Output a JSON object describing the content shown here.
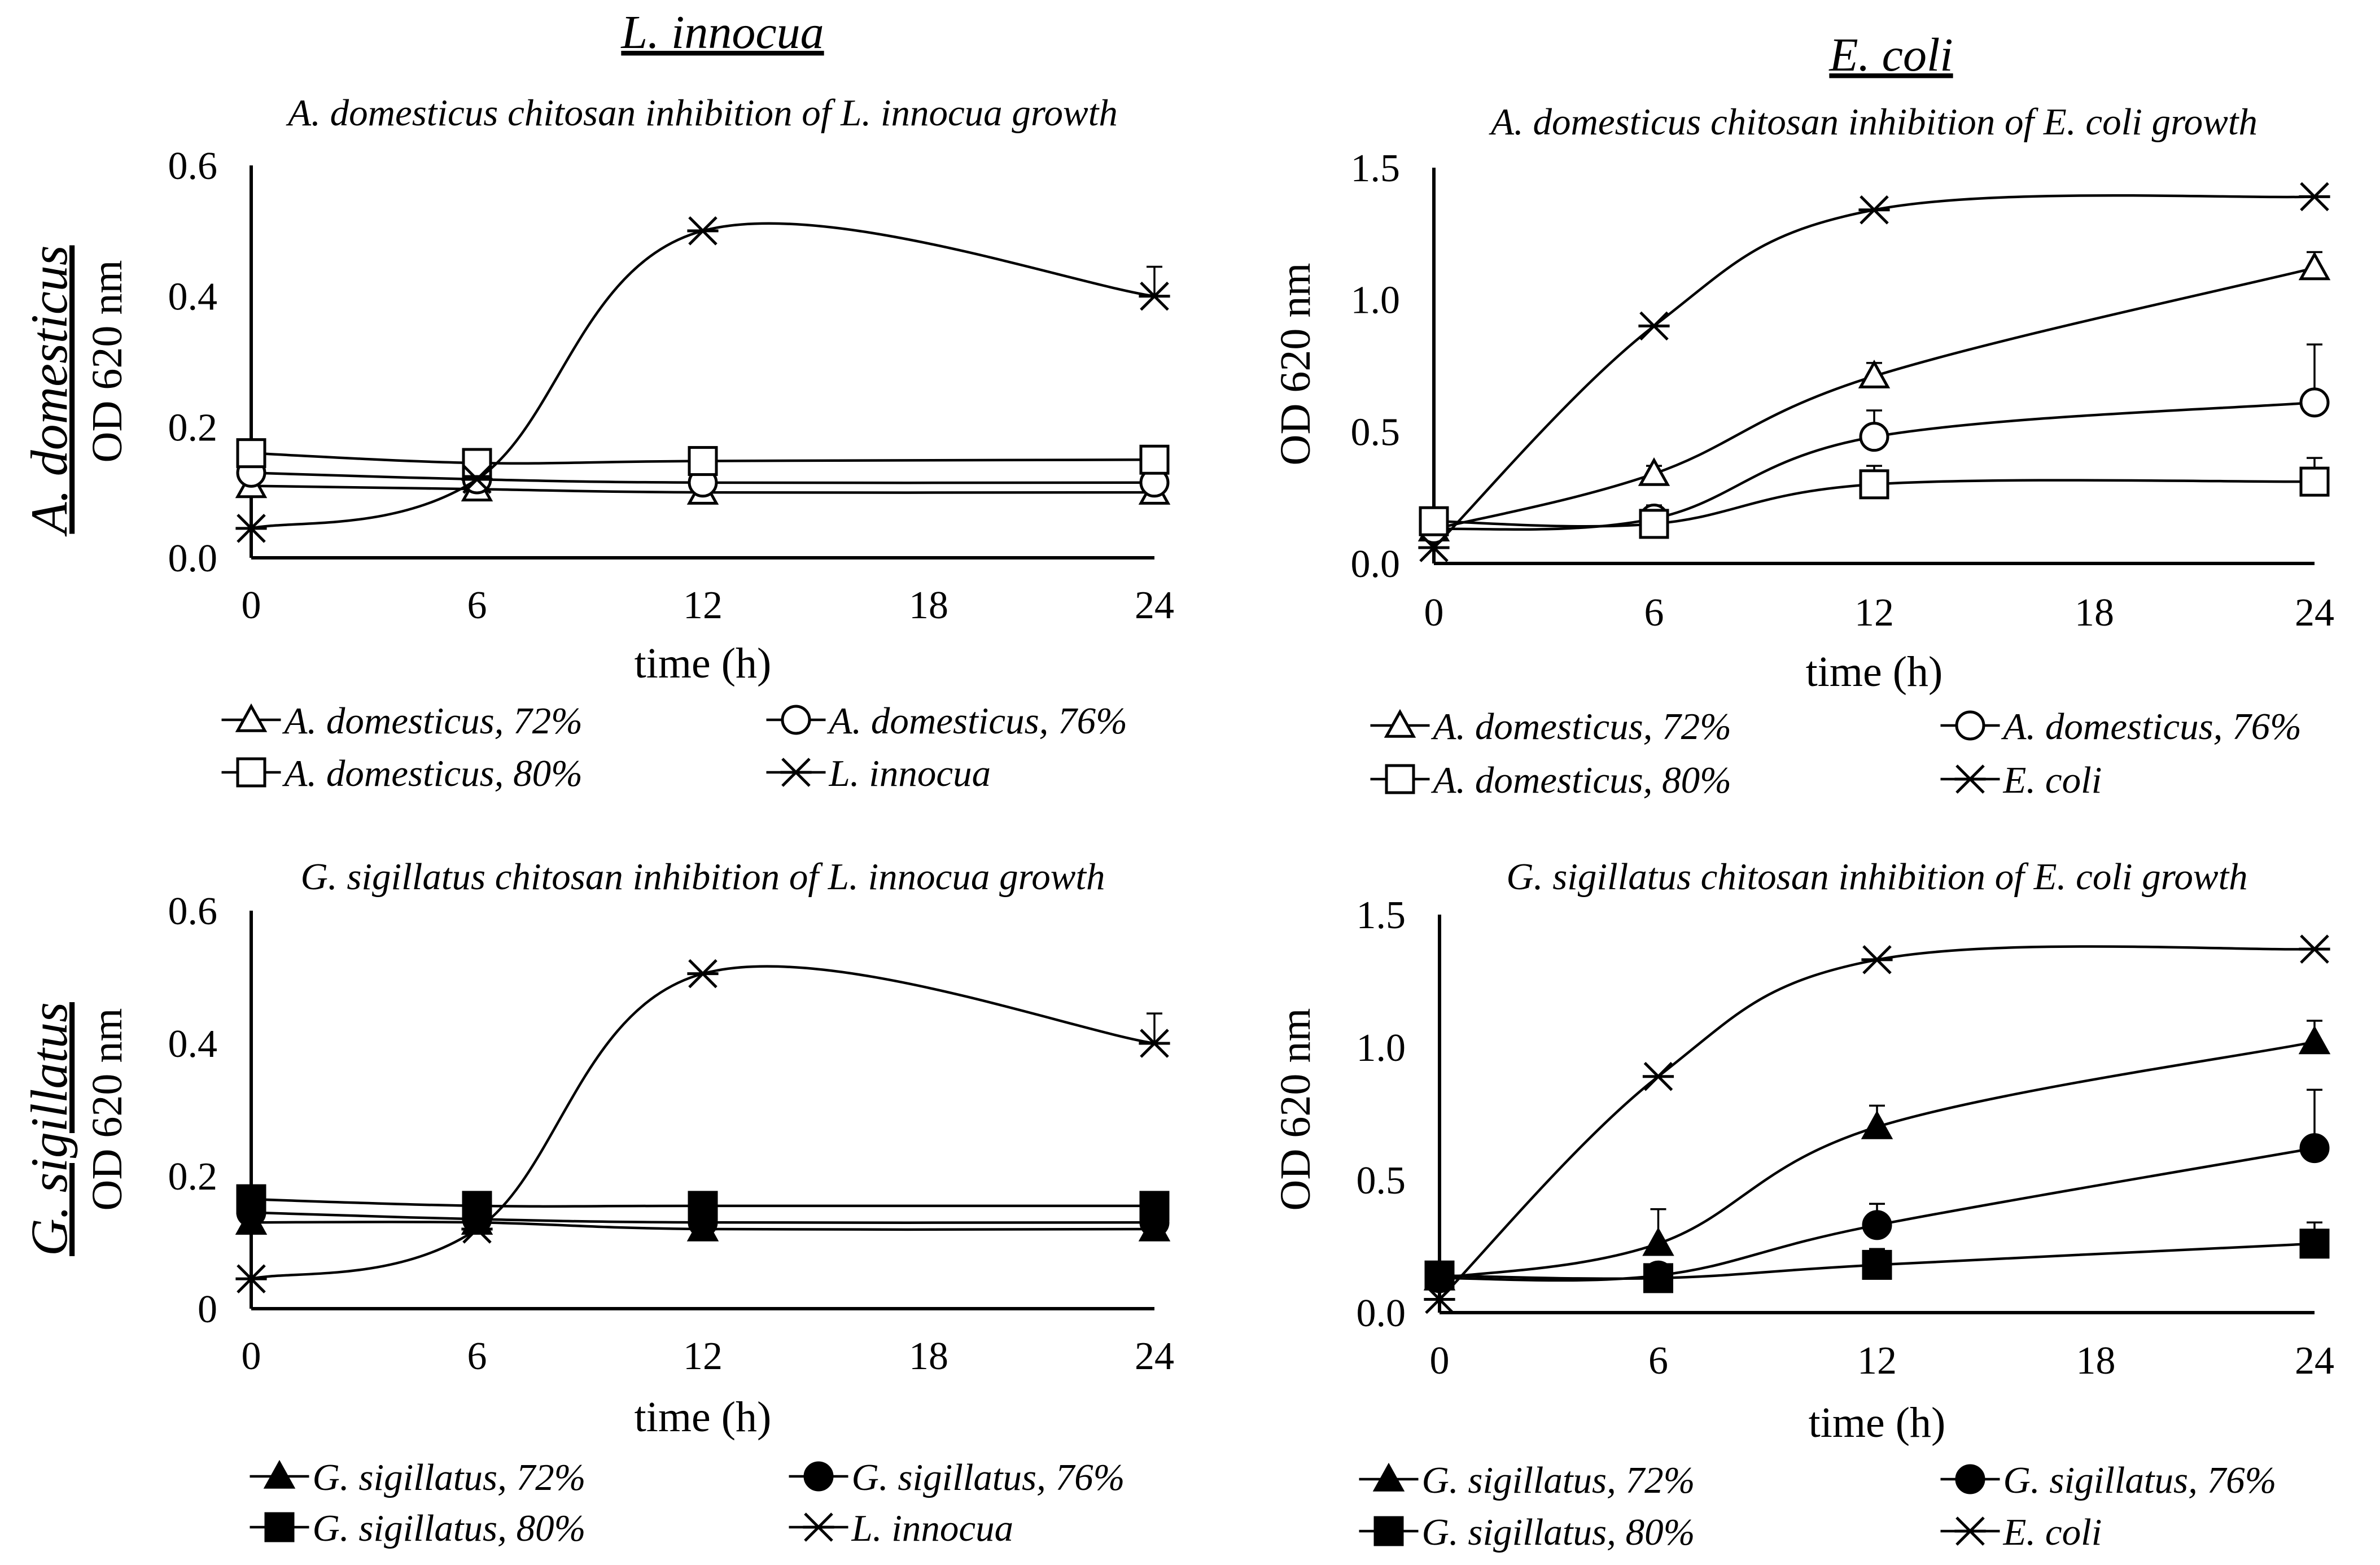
{
  "figure": {
    "column_headers": [
      "L. innocua",
      "E. coli"
    ],
    "row_headers": [
      "A. domesticus",
      "G. sigillatus"
    ]
  },
  "chart_data": [
    {
      "type": "line",
      "title": "A. domesticus chitosan inhibition of L. innocua growth",
      "xlabel": "time (h)",
      "ylabel": "OD 620 nm",
      "x": [
        0,
        6,
        12,
        24
      ],
      "xticks": [
        "0",
        "6",
        "12",
        "18",
        "24"
      ],
      "xlim": [
        0,
        24
      ],
      "yticks": [
        "0.0",
        "0.2",
        "0.4",
        "0.6"
      ],
      "ylim": [
        0,
        0.6
      ],
      "legend": "bottom",
      "series": [
        {
          "name": "A. domesticus, 72%",
          "marker": "triangle-open",
          "values": [
            0.11,
            0.105,
            0.1,
            0.1
          ]
        },
        {
          "name": "A. domesticus, 76%",
          "marker": "circle-open",
          "values": [
            0.13,
            0.12,
            0.115,
            0.115
          ]
        },
        {
          "name": "A. domesticus, 80%",
          "marker": "square-open",
          "values": [
            0.16,
            0.145,
            0.148,
            0.15
          ]
        },
        {
          "name": "L. innocua",
          "marker": "asterisk",
          "values": [
            0.045,
            0.12,
            0.5,
            0.4
          ],
          "error": [
            0,
            0,
            0,
            0.045
          ]
        }
      ]
    },
    {
      "type": "line",
      "title": "A. domesticus chitosan inhibition of E. coli growth",
      "xlabel": "time (h)",
      "ylabel": "OD 620 nm",
      "x": [
        0,
        6,
        12,
        24
      ],
      "xticks": [
        "0",
        "6",
        "12",
        "18",
        "24"
      ],
      "xlim": [
        0,
        24
      ],
      "yticks": [
        "0.0",
        "0.5",
        "1.0",
        "1.5"
      ],
      "ylim": [
        0,
        1.5
      ],
      "legend": "bottom",
      "series": [
        {
          "name": "A. domesticus, 72%",
          "marker": "triangle-open",
          "values": [
            0.13,
            0.34,
            0.71,
            1.12
          ],
          "error": [
            0,
            0.03,
            0.05,
            0.06
          ]
        },
        {
          "name": "A. domesticus, 76%",
          "marker": "circle-open",
          "values": [
            0.13,
            0.17,
            0.48,
            0.61
          ],
          "error": [
            0,
            0.05,
            0.1,
            0.22
          ]
        },
        {
          "name": "A. domesticus, 80%",
          "marker": "square-open",
          "values": [
            0.16,
            0.15,
            0.3,
            0.31
          ],
          "error": [
            0,
            0.02,
            0.07,
            0.09
          ]
        },
        {
          "name": "E. coli",
          "marker": "asterisk",
          "values": [
            0.06,
            0.9,
            1.34,
            1.39
          ]
        }
      ]
    },
    {
      "type": "line",
      "title": "G. sigillatus chitosan inhibition of L. innocua growth",
      "xlabel": "time (h)",
      "ylabel": "OD 620 nm",
      "x": [
        0,
        6,
        12,
        24
      ],
      "xticks": [
        "0",
        "6",
        "12",
        "18",
        "24"
      ],
      "xlim": [
        0,
        24
      ],
      "yticks": [
        "0",
        "0.2",
        "0.4",
        "0.6"
      ],
      "ylim": [
        0,
        0.6
      ],
      "legend": "bottom",
      "series": [
        {
          "name": "G. sigillatus, 72%",
          "marker": "triangle-filled",
          "values": [
            0.13,
            0.13,
            0.12,
            0.12
          ]
        },
        {
          "name": "G. sigillatus, 76%",
          "marker": "circle-filled",
          "values": [
            0.145,
            0.135,
            0.13,
            0.13
          ]
        },
        {
          "name": "G. sigillatus, 80%",
          "marker": "square-filled",
          "values": [
            0.165,
            0.155,
            0.155,
            0.155
          ]
        },
        {
          "name": "L. innocua",
          "marker": "asterisk",
          "values": [
            0.045,
            0.12,
            0.505,
            0.4
          ],
          "error": [
            0,
            0,
            0,
            0.045
          ]
        }
      ]
    },
    {
      "type": "line",
      "title": "G. sigillatus chitosan inhibition of E. coli growth",
      "xlabel": "time (h)",
      "ylabel": "OD 620 nm",
      "x": [
        0,
        6,
        12,
        24
      ],
      "xticks": [
        "0",
        "6",
        "12",
        "18",
        "24"
      ],
      "xlim": [
        0,
        24
      ],
      "yticks": [
        "0.0",
        "0.5",
        "1.0",
        "1.5"
      ],
      "ylim": [
        0,
        1.5
      ],
      "legend": "bottom",
      "series": [
        {
          "name": "G. sigillatus, 72%",
          "marker": "triangle-filled",
          "values": [
            0.13,
            0.26,
            0.7,
            1.02
          ],
          "error": [
            0,
            0.13,
            0.08,
            0.08
          ]
        },
        {
          "name": "G. sigillatus, 76%",
          "marker": "circle-filled",
          "values": [
            0.13,
            0.14,
            0.33,
            0.62
          ],
          "error": [
            0,
            0,
            0.08,
            0.22
          ]
        },
        {
          "name": "G. sigillatus, 80%",
          "marker": "square-filled",
          "values": [
            0.14,
            0.13,
            0.18,
            0.26
          ],
          "error": [
            0,
            0.02,
            0.06,
            0.08
          ]
        },
        {
          "name": "E. coli",
          "marker": "asterisk",
          "values": [
            0.05,
            0.89,
            1.33,
            1.37
          ]
        }
      ]
    }
  ]
}
